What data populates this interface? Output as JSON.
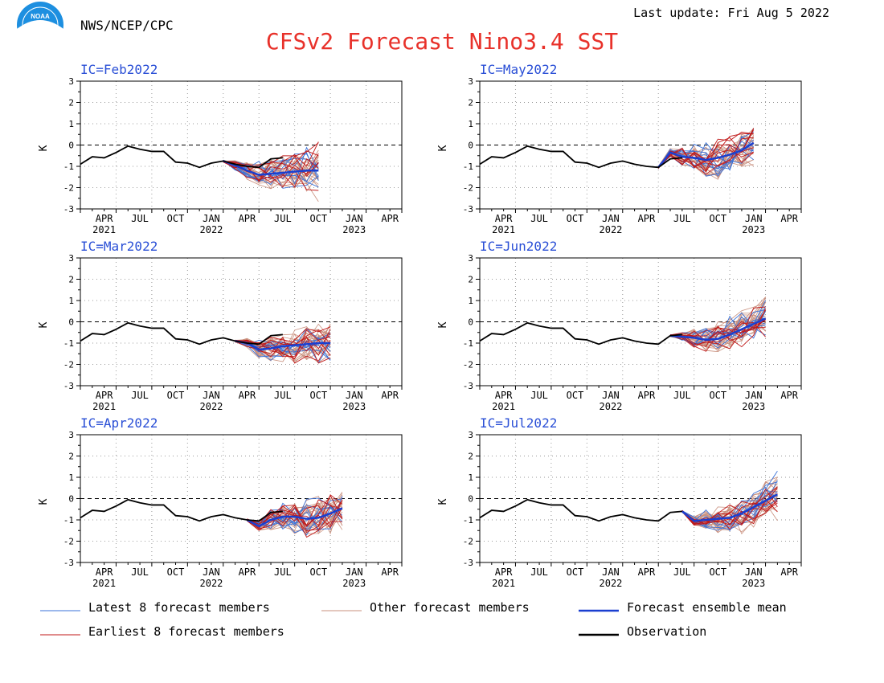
{
  "header": {
    "agency": "NWS/NCEP/CPC",
    "title": "CFSv2 Forecast Nino3.4 SST",
    "last_update": "Last update: Fri Aug 5 2022",
    "logo_text": "NOAA"
  },
  "colors": {
    "title": "#e8312a",
    "panel_title": "#2a4fd6",
    "latest": "#3a72d8",
    "other": "#c9907e",
    "earliest": "#c01818",
    "mean": "#1a3fd0",
    "obs": "#000000"
  },
  "legend": [
    {
      "label": "Latest 8 forecast members",
      "color": "#3a72d8",
      "style": "thin"
    },
    {
      "label": "Other forecast members",
      "color": "#c9907e",
      "style": "thin"
    },
    {
      "label": "Forecast ensemble mean",
      "color": "#1a3fd0",
      "style": "thick"
    },
    {
      "label": "Earliest 8 forecast members",
      "color": "#c01818",
      "style": "thin"
    },
    {
      "label": "Observation",
      "color": "#000000",
      "style": "thick"
    }
  ],
  "chart_data": [
    {
      "type": "line",
      "title": "IC=Feb2022",
      "ylabel": "K",
      "ylim": [
        -3,
        3
      ],
      "yticks": [
        3,
        2,
        1,
        0,
        -1,
        -2,
        -3
      ],
      "grid": true,
      "x_tick_labels": [
        "APR\n2021",
        "JUL",
        "OCT",
        "JAN\n2022",
        "APR",
        "JUL",
        "OCT",
        "JAN\n2023",
        "APR"
      ],
      "observation": [
        -0.9,
        -0.55,
        -0.6,
        -0.35,
        -0.05,
        -0.2,
        -0.3,
        -0.3,
        -0.8,
        -0.85,
        -1.05,
        -0.85,
        -0.75,
        -0.9,
        -1.0,
        -1.05,
        -0.65,
        -0.6
      ],
      "forecast_start": 12,
      "forecast_months": 9,
      "ensemble_mean": [
        -0.75,
        -0.95,
        -1.2,
        -1.4,
        -1.35,
        -1.3,
        -1.25,
        -1.2,
        -1.2
      ],
      "spread": [
        0.05,
        0.2,
        0.4,
        0.55,
        0.65,
        0.7,
        0.75,
        0.8,
        0.85
      ]
    },
    {
      "type": "line",
      "title": "IC=May2022",
      "ylabel": "K",
      "ylim": [
        -3,
        3
      ],
      "yticks": [
        3,
        2,
        1,
        0,
        -1,
        -2,
        -3
      ],
      "grid": true,
      "x_tick_labels": [
        "APR\n2021",
        "JUL",
        "OCT",
        "JAN\n2022",
        "APR",
        "JUL",
        "OCT",
        "JAN\n2023",
        "APR"
      ],
      "observation": [
        -0.9,
        -0.55,
        -0.6,
        -0.35,
        -0.05,
        -0.2,
        -0.3,
        -0.3,
        -0.8,
        -0.85,
        -1.05,
        -0.85,
        -0.75,
        -0.9,
        -1.0,
        -1.05,
        -0.65,
        -0.6
      ],
      "forecast_start": 15,
      "forecast_months": 9,
      "ensemble_mean": [
        -1.05,
        -0.35,
        -0.55,
        -0.6,
        -0.7,
        -0.6,
        -0.45,
        -0.25,
        0.1
      ],
      "spread": [
        0.05,
        0.2,
        0.45,
        0.6,
        0.7,
        0.7,
        0.7,
        0.7,
        0.65
      ]
    },
    {
      "type": "line",
      "title": "IC=Mar2022",
      "ylabel": "K",
      "ylim": [
        -3,
        3
      ],
      "yticks": [
        3,
        2,
        1,
        0,
        -1,
        -2,
        -3
      ],
      "grid": true,
      "x_tick_labels": [
        "APR\n2021",
        "JUL",
        "OCT",
        "JAN\n2022",
        "APR",
        "JUL",
        "OCT",
        "JAN\n2023",
        "APR"
      ],
      "observation": [
        -0.9,
        -0.55,
        -0.6,
        -0.35,
        -0.05,
        -0.2,
        -0.3,
        -0.3,
        -0.8,
        -0.85,
        -1.05,
        -0.85,
        -0.75,
        -0.9,
        -1.0,
        -1.05,
        -0.65,
        -0.6
      ],
      "forecast_start": 13,
      "forecast_months": 9,
      "ensemble_mean": [
        -0.9,
        -1.0,
        -1.3,
        -1.25,
        -1.15,
        -1.1,
        -1.05,
        -1.0,
        -1.0
      ],
      "spread": [
        0.05,
        0.2,
        0.4,
        0.5,
        0.6,
        0.65,
        0.7,
        0.7,
        0.75
      ]
    },
    {
      "type": "line",
      "title": "IC=Jun2022",
      "ylabel": "K",
      "ylim": [
        -3,
        3
      ],
      "yticks": [
        3,
        2,
        1,
        0,
        -1,
        -2,
        -3
      ],
      "grid": true,
      "x_tick_labels": [
        "APR\n2021",
        "JUL",
        "OCT",
        "JAN\n2022",
        "APR",
        "JUL",
        "OCT",
        "JAN\n2023",
        "APR"
      ],
      "observation": [
        -0.9,
        -0.55,
        -0.6,
        -0.35,
        -0.05,
        -0.2,
        -0.3,
        -0.3,
        -0.8,
        -0.85,
        -1.05,
        -0.85,
        -0.75,
        -0.9,
        -1.0,
        -1.05,
        -0.65,
        -0.6
      ],
      "forecast_start": 16,
      "forecast_months": 9,
      "ensemble_mean": [
        -0.65,
        -0.7,
        -0.75,
        -0.85,
        -0.8,
        -0.6,
        -0.35,
        -0.1,
        0.15
      ],
      "spread": [
        0.05,
        0.2,
        0.4,
        0.5,
        0.6,
        0.65,
        0.7,
        0.7,
        0.7
      ]
    },
    {
      "type": "line",
      "title": "IC=Apr2022",
      "ylabel": "K",
      "ylim": [
        -3,
        3
      ],
      "yticks": [
        3,
        2,
        1,
        0,
        -1,
        -2,
        -3
      ],
      "grid": true,
      "x_tick_labels": [
        "APR\n2021",
        "JUL",
        "OCT",
        "JAN\n2022",
        "APR",
        "JUL",
        "OCT",
        "JAN\n2023",
        "APR"
      ],
      "observation": [
        -0.9,
        -0.55,
        -0.6,
        -0.35,
        -0.05,
        -0.2,
        -0.3,
        -0.3,
        -0.8,
        -0.85,
        -1.05,
        -0.85,
        -0.75,
        -0.9,
        -1.0,
        -1.05,
        -0.65,
        -0.6
      ],
      "forecast_start": 14,
      "forecast_months": 9,
      "ensemble_mean": [
        -1.0,
        -1.3,
        -1.0,
        -0.85,
        -0.85,
        -0.95,
        -0.9,
        -0.7,
        -0.45
      ],
      "spread": [
        0.05,
        0.2,
        0.45,
        0.6,
        0.7,
        0.75,
        0.8,
        0.8,
        0.85
      ]
    },
    {
      "type": "line",
      "title": "IC=Jul2022",
      "ylabel": "K",
      "ylim": [
        -3,
        3
      ],
      "yticks": [
        3,
        2,
        1,
        0,
        -1,
        -2,
        -3
      ],
      "grid": true,
      "x_tick_labels": [
        "APR\n2021",
        "JUL",
        "OCT",
        "JAN\n2022",
        "APR",
        "JUL",
        "OCT",
        "JAN\n2023",
        "APR"
      ],
      "observation": [
        -0.9,
        -0.55,
        -0.6,
        -0.35,
        -0.05,
        -0.2,
        -0.3,
        -0.3,
        -0.8,
        -0.85,
        -1.05,
        -0.85,
        -0.75,
        -0.9,
        -1.0,
        -1.05,
        -0.65,
        -0.6
      ],
      "forecast_start": 17,
      "forecast_months": 9,
      "ensemble_mean": [
        -0.6,
        -1.05,
        -1.0,
        -0.95,
        -0.9,
        -0.7,
        -0.4,
        -0.1,
        0.2
      ],
      "spread": [
        0.05,
        0.2,
        0.4,
        0.55,
        0.65,
        0.7,
        0.7,
        0.7,
        0.65
      ]
    }
  ]
}
